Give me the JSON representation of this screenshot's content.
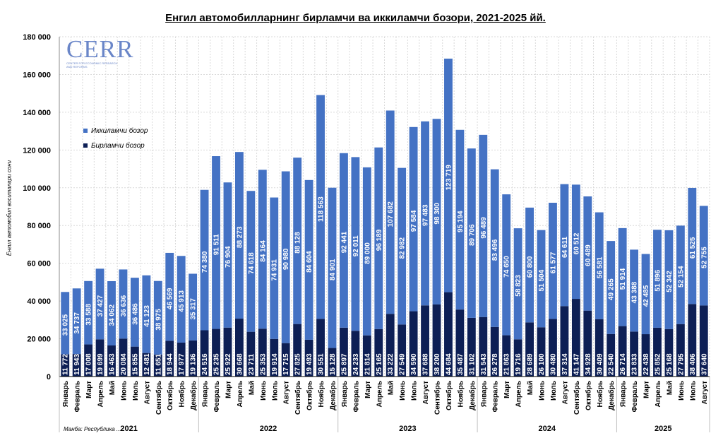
{
  "title": "Енгил автомобилларнинг бирламчи ва иккиламчи бозори, 2021-2025 йй.",
  "source": "Манба: Республика ...",
  "logo": {
    "text": "CERR",
    "subtitle": "CENTER FOR ECONOMIC RESEARCH AND REFORMS"
  },
  "colors": {
    "primary": "#0d1f55",
    "secondary": "#4472c4",
    "grid": "#d9d9d9"
  },
  "chart_data": {
    "type": "bar",
    "stacked": true,
    "ylabel": "Енгил автомобил воситалари сони",
    "ylim": [
      0,
      180000
    ],
    "yticks": [
      "0",
      "20 000",
      "40 000",
      "60 000",
      "80 000",
      "100 000",
      "120 000",
      "140 000",
      "160 000",
      "180 000"
    ],
    "grid": true,
    "legend_position": "upper-left",
    "categories": [
      "Январь",
      "Февраль",
      "Март",
      "Апрель",
      "Май",
      "Июнь",
      "Июль",
      "Август",
      "Сентябрь",
      "Октябрь",
      "Ноябрь",
      "Декабрь",
      "Январь",
      "Февраль",
      "Март",
      "Апрель",
      "Май",
      "Июнь",
      "Июль",
      "Август",
      "Сентябрь",
      "Октябрь",
      "Ноябрь",
      "Декабрь",
      "Январь",
      "Февраль",
      "Март",
      "Апрель",
      "Май",
      "Июнь",
      "Июль",
      "Август",
      "Сентябрь",
      "Октябрь",
      "Ноябрь",
      "Декабрь",
      "Январь",
      "Февраль",
      "Март",
      "Апрель",
      "Май",
      "Июнь",
      "Июль",
      "Август",
      "Сентябрь",
      "Октябрь",
      "Ноябрь",
      "Декабрь",
      "Январь",
      "Февраль",
      "Март",
      "Апрель",
      "Май",
      "Июнь",
      "Июль",
      "Август"
    ],
    "groups": [
      {
        "label": "2021",
        "count": 12
      },
      {
        "label": "2022",
        "count": 12
      },
      {
        "label": "2023",
        "count": 12
      },
      {
        "label": "2024",
        "count": 12
      },
      {
        "label": "2025",
        "count": 8
      }
    ],
    "series": [
      {
        "name": "Бирламчи бозор",
        "color": "#0d1f55",
        "values": [
          11772,
          11943,
          17008,
          19699,
          16463,
          20084,
          15855,
          12481,
          11651,
          18944,
          17977,
          19136,
          24516,
          25235,
          25922,
          30668,
          23711,
          25353,
          19914,
          17715,
          27825,
          19493,
          30551,
          15128,
          25897,
          24233,
          21814,
          25165,
          33222,
          27549,
          34590,
          37688,
          38200,
          44684,
          35487,
          31102,
          31543,
          26278,
          21863,
          19716,
          28689,
          26100,
          30480,
          37314,
          41147,
          34928,
          30409,
          22540,
          26714,
          23833,
          22438,
          25852,
          25168,
          27795,
          38406,
          37640
        ],
        "labels": [
          "11 772",
          "11 943",
          "17 008",
          "19 699",
          "16 463",
          "20 084",
          "15 855",
          "12 481",
          "11 651",
          "18 944",
          "17 977",
          "19 136",
          "24 516",
          "25 235",
          "25 922",
          "30 668",
          "23 711",
          "25 353",
          "19 914",
          "17 715",
          "27 825",
          "19 493",
          "30 551",
          "15 128",
          "25 897",
          "24 233",
          "21 814",
          "25 165",
          "33 222",
          "27 549",
          "34 590",
          "37 688",
          "38 200",
          "44 684",
          "35 487",
          "31 102",
          "31 543",
          "26 278",
          "21 863",
          "19 716",
          "28 689",
          "26 100",
          "30 480",
          "37 314",
          "41 147",
          "34 928",
          "30 409",
          "22 540",
          "26 714",
          "23 833",
          "22 438",
          "25 852",
          "25 168",
          "27 795",
          "38 406",
          "37 640"
        ]
      },
      {
        "name": "Иккиламчи бозор",
        "color": "#4472c4",
        "values": [
          33025,
          34737,
          33588,
          37427,
          34062,
          36636,
          36486,
          41123,
          38975,
          46569,
          45913,
          35317,
          74380,
          91511,
          76904,
          88273,
          74618,
          84164,
          74931,
          90980,
          88128,
          84604,
          118563,
          84901,
          92441,
          92011,
          89000,
          96189,
          107682,
          82982,
          97584,
          97483,
          98300,
          123719,
          95194,
          89706,
          96489,
          83496,
          74650,
          58823,
          60800,
          51504,
          61577,
          64611,
          60512,
          60489,
          56581,
          49265,
          51914,
          43388,
          42485,
          51896,
          52342,
          52154,
          61525,
          52755
        ],
        "labels": [
          "33 025",
          "34 737",
          "33 588",
          "37 427",
          "34 062",
          "36 636",
          "36 486",
          "41 123",
          "38 975",
          "46 569",
          "45 913",
          "35 317",
          "74 380",
          "91 511",
          "76 904",
          "88 273",
          "74 618",
          "84 164",
          "74 931",
          "90 980",
          "88 128",
          "84 604",
          "118 563",
          "84 901",
          "92 441",
          "92 011",
          "89 000",
          "96 189",
          "107 682",
          "82 982",
          "97 584",
          "97 483",
          "98 300",
          "123 719",
          "95 194",
          "89 706",
          "96 489",
          "83 496",
          "74 650",
          "58 823",
          "60 800",
          "51 504",
          "61 577",
          "64 611",
          "60 512",
          "60 489",
          "56 581",
          "49 265",
          "51 914",
          "43 388",
          "42 485",
          "51 896",
          "52 342",
          "52 154",
          "61 525",
          "52 755"
        ]
      }
    ]
  }
}
